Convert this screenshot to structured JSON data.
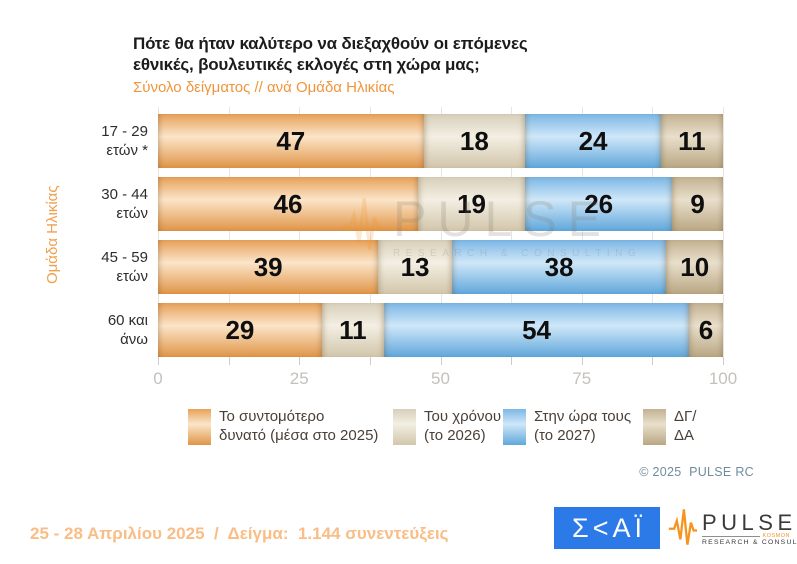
{
  "title": {
    "line1": "Πότε θα ήταν καλύτερο να διεξαχθούν οι επόμενες",
    "line2": "εθνικές, βουλευτικές εκλογές στη χώρα μας;",
    "subtitle": "Σύνολο δείγματος // ανά Ομάδα Ηλικίας"
  },
  "chart_data": {
    "type": "bar",
    "orientation": "horizontal",
    "stacked": true,
    "title": "Πότε θα ήταν καλύτερο να διεξαχθούν οι επόμενες εθνικές, βουλευτικές εκλογές στη χώρα μας;",
    "subtitle": "Σύνολο δείγματος // ανά Ομάδα Ηλικίας",
    "ylabel": "Ομάδα Ηλικίας",
    "categories": [
      "17 - 29 ετών *",
      "30 - 44 ετών",
      "45 - 59 ετών",
      "60 και άνω"
    ],
    "category_lines": [
      [
        "17 - 29",
        "ετών *"
      ],
      [
        "30 - 44",
        "ετών"
      ],
      [
        "45 - 59",
        "ετών"
      ],
      [
        "60 και",
        "άνω"
      ]
    ],
    "series": [
      {
        "name": "Το συντομότερο δυνατό (μέσα στο 2025)",
        "values": [
          47,
          46,
          39,
          29
        ],
        "color_top": "#e7a159",
        "color_mid": "#fbe5c9",
        "color_bottom": "#e09548"
      },
      {
        "name": "Του χρόνου (το 2026)",
        "values": [
          18,
          19,
          13,
          11
        ],
        "color_top": "#d8cfba",
        "color_mid": "#f3efe3",
        "color_bottom": "#d2c6ab"
      },
      {
        "name": "Στην ώρα τους (το 2027)",
        "values": [
          24,
          26,
          38,
          54
        ],
        "color_top": "#7cb7e5",
        "color_mid": "#cfe7f8",
        "color_bottom": "#60a7db"
      },
      {
        "name": "ΔΓ/ΔΑ",
        "values": [
          11,
          9,
          10,
          6
        ],
        "color_top": "#c3b292",
        "color_mid": "#e9dfcb",
        "color_bottom": "#b9a783"
      }
    ],
    "xlim": [
      0,
      100
    ],
    "x_major_ticks": [
      0,
      25,
      50,
      75,
      100
    ],
    "x_minor_step": 12.5,
    "grid": true,
    "legend_position": "bottom"
  },
  "legend": {
    "items": [
      {
        "line1": "Το συντομότερο",
        "line2": "δυνατό (μέσα στο 2025)"
      },
      {
        "line1": "Του χρόνου",
        "line2": "(το 2026)"
      },
      {
        "line1": "Στην ώρα τους",
        "line2": "(το 2027)"
      },
      {
        "line1": "ΔΓ/",
        "line2": "ΔΑ"
      }
    ]
  },
  "watermark": {
    "name": "PULSE",
    "tagline": "RESEARCH & CONSULTING"
  },
  "copyright": "© 2025  PULSE RC",
  "footer": {
    "note": "25 - 28 Απριλίου 2025  /  Δείγμα:  1.144 συνεντεύξεις"
  },
  "logos": {
    "skai": {
      "text": "ΣΚΑΪ",
      "display": "Σ<ΑΪ",
      "bg": "#2b7ae8"
    },
    "pulse": {
      "name": "PULSE",
      "sub": "KOSMON",
      "tagline": "RESEARCH & CONSULTING",
      "accent": "#f5941f"
    }
  }
}
